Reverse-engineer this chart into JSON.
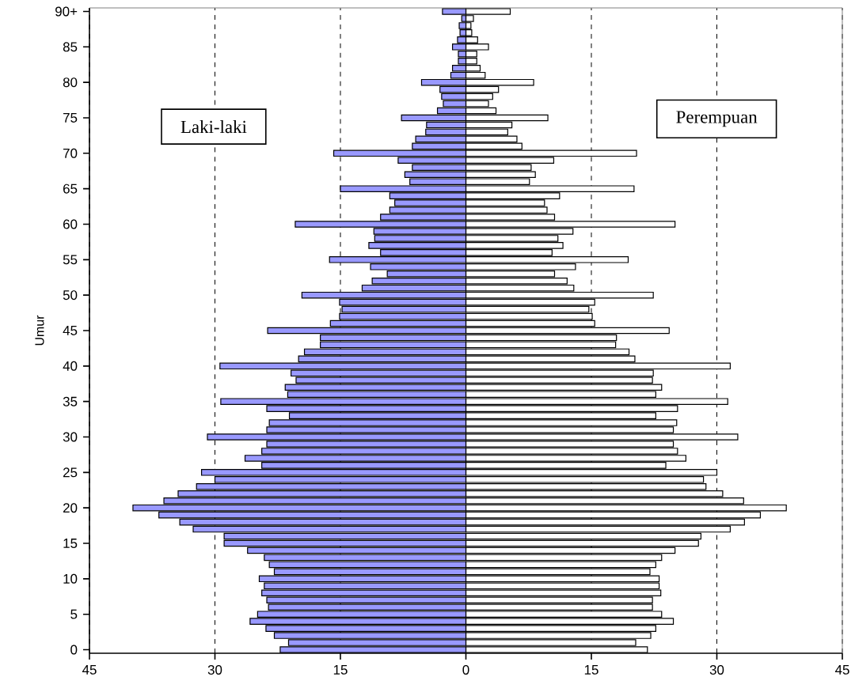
{
  "chart_data": {
    "type": "bar",
    "orientation": "horizontal",
    "ylabel": "Umur",
    "categories": [
      "90+",
      null,
      null,
      null,
      null,
      "85",
      null,
      null,
      null,
      null,
      "80",
      null,
      null,
      null,
      null,
      "75",
      null,
      null,
      null,
      null,
      "70",
      null,
      null,
      null,
      null,
      "65",
      null,
      null,
      null,
      null,
      "60",
      null,
      null,
      null,
      null,
      "55",
      null,
      null,
      null,
      null,
      "50",
      null,
      null,
      null,
      null,
      "45",
      null,
      null,
      null,
      null,
      "40",
      null,
      null,
      null,
      null,
      "35",
      null,
      null,
      null,
      null,
      "30",
      null,
      null,
      null,
      null,
      "25",
      null,
      null,
      null,
      null,
      "20",
      null,
      null,
      null,
      null,
      "15",
      null,
      null,
      null,
      null,
      "10",
      null,
      null,
      null,
      null,
      "5",
      null,
      null,
      null,
      null,
      "0"
    ],
    "series": [
      {
        "name": "Laki-laki",
        "color": "#9999ff",
        "values": [
          -2.8,
          -0.5,
          -0.8,
          -0.7,
          -1.0,
          -1.6,
          -0.9,
          -0.9,
          -1.6,
          -1.8,
          -5.3,
          -3.1,
          -2.9,
          -2.7,
          -3.4,
          -7.7,
          -4.7,
          -4.8,
          -6.0,
          -6.4,
          -15.8,
          -8.1,
          -6.4,
          -7.3,
          -6.7,
          -15.0,
          -9.1,
          -8.5,
          -9.1,
          -10.2,
          -20.4,
          -11.0,
          -10.9,
          -11.6,
          -10.2,
          -16.3,
          -11.4,
          -9.4,
          -11.2,
          -12.4,
          -19.6,
          -15.1,
          -14.8,
          -15.1,
          -16.2,
          -23.7,
          -17.4,
          -17.4,
          -19.3,
          -20.0,
          -29.4,
          -20.9,
          -20.3,
          -21.6,
          -21.3,
          -29.3,
          -23.8,
          -21.1,
          -23.5,
          -23.8,
          -30.9,
          -23.8,
          -24.4,
          -26.4,
          -24.4,
          -31.6,
          -30.0,
          -32.2,
          -34.4,
          -36.1,
          -39.8,
          -36.7,
          -34.2,
          -32.6,
          -28.9,
          -28.9,
          -26.1,
          -24.1,
          -23.5,
          -22.9,
          -24.7,
          -24.1,
          -24.4,
          -23.8,
          -23.6,
          -24.9,
          -25.8,
          -23.9,
          -22.9,
          -21.2,
          -22.2
        ]
      },
      {
        "name": "Perempuan",
        "color": "#ffffff",
        "values": [
          5.3,
          0.9,
          0.6,
          0.7,
          1.4,
          2.7,
          1.3,
          1.3,
          1.7,
          2.3,
          8.1,
          3.9,
          3.2,
          2.7,
          3.6,
          9.8,
          5.5,
          5.0,
          6.1,
          6.7,
          20.4,
          10.5,
          7.8,
          8.3,
          7.6,
          20.1,
          11.2,
          9.4,
          9.7,
          10.6,
          25.0,
          12.8,
          11.0,
          11.6,
          10.3,
          19.4,
          13.1,
          10.6,
          12.1,
          12.9,
          22.4,
          15.4,
          14.7,
          15.1,
          15.4,
          24.3,
          18.0,
          17.9,
          19.5,
          20.2,
          31.6,
          22.4,
          22.3,
          23.4,
          22.7,
          31.3,
          25.3,
          22.7,
          25.2,
          24.8,
          32.5,
          24.8,
          25.3,
          26.3,
          23.9,
          30.0,
          28.4,
          28.7,
          30.7,
          33.2,
          38.3,
          35.2,
          33.3,
          31.6,
          28.1,
          27.8,
          25.0,
          23.4,
          22.7,
          22.0,
          23.1,
          23.1,
          23.3,
          22.3,
          22.3,
          23.4,
          24.8,
          22.7,
          22.1,
          20.3,
          21.7
        ]
      }
    ],
    "xlim": [
      -45,
      45
    ],
    "xticks": [
      {
        "value": -45,
        "label": "45"
      },
      {
        "value": -30,
        "label": "30"
      },
      {
        "value": -15,
        "label": "15"
      },
      0,
      15,
      30,
      45
    ],
    "stacked": true,
    "grid": "x"
  }
}
